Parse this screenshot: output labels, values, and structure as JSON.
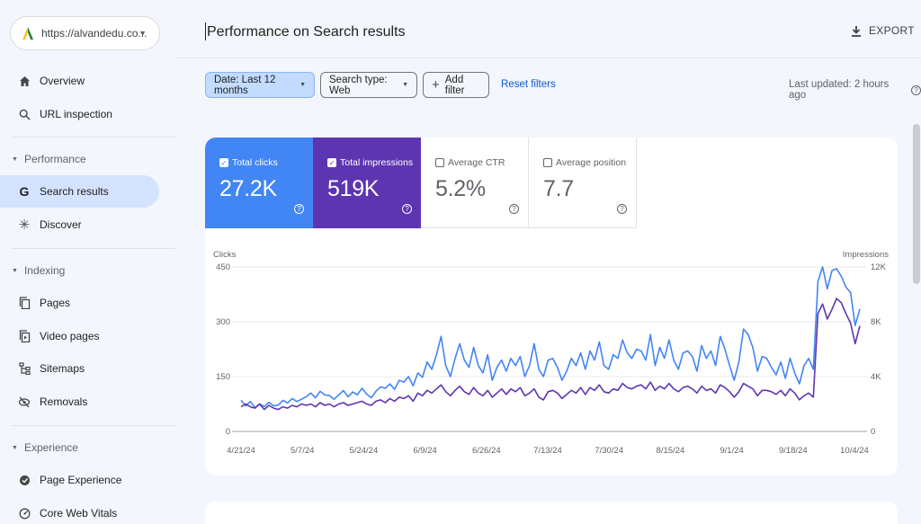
{
  "property": {
    "url": "https://alvandedu.co...",
    "logo_icon": "alvand-logo-icon"
  },
  "nav": {
    "overview": "Overview",
    "url_inspection": "URL inspection",
    "performance_section": "Performance",
    "search_results": "Search results",
    "discover": "Discover",
    "indexing_section": "Indexing",
    "pages": "Pages",
    "video_pages": "Video pages",
    "sitemaps": "Sitemaps",
    "removals": "Removals",
    "experience_section": "Experience",
    "page_experience": "Page Experience",
    "core_web_vitals": "Core Web Vitals"
  },
  "header": {
    "title": "Performance on Search results",
    "export_label": "EXPORT"
  },
  "filters": {
    "date": "Date: Last 12 months",
    "search_type": "Search type: Web",
    "add_filter": "Add filter",
    "reset": "Reset filters",
    "last_updated": "Last updated: 2 hours ago"
  },
  "metrics": [
    {
      "label": "Total clicks",
      "value": "27.2K",
      "checked": true,
      "color": "#4285f4"
    },
    {
      "label": "Total impressions",
      "value": "519K",
      "checked": true,
      "color": "#5e35b1"
    },
    {
      "label": "Average CTR",
      "value": "5.2%",
      "checked": false
    },
    {
      "label": "Average position",
      "value": "7.7",
      "checked": false
    }
  ],
  "chart_data": {
    "type": "line",
    "left_axis_label": "Clicks",
    "right_axis_label": "Impressions",
    "left_ticks": [
      "450",
      "300",
      "150",
      "0"
    ],
    "right_ticks": [
      "12K",
      "8K",
      "4K",
      "0"
    ],
    "ylim_left": [
      0,
      450
    ],
    "ylim_right": [
      0,
      12000
    ],
    "x_ticks": [
      "4/21/24",
      "5/7/24",
      "5/24/24",
      "6/9/24",
      "6/26/24",
      "7/13/24",
      "7/30/24",
      "8/15/24",
      "9/1/24",
      "9/18/24",
      "10/4/24"
    ],
    "grid": true,
    "series": [
      {
        "name": "Total clicks",
        "axis": "left",
        "color": "#4285f4",
        "values": [
          85,
          70,
          82,
          65,
          75,
          68,
          80,
          70,
          72,
          85,
          78,
          90,
          82,
          88,
          95,
          105,
          92,
          110,
          100,
          98,
          88,
          100,
          112,
          95,
          108,
          100,
          118,
          102,
          92,
          110,
          122,
          118,
          130,
          115,
          140,
          135,
          150,
          125,
          160,
          148,
          190,
          170,
          210,
          260,
          180,
          150,
          200,
          240,
          195,
          175,
          230,
          180,
          160,
          210,
          140,
          175,
          195,
          165,
          200,
          180,
          205,
          150,
          180,
          240,
          170,
          150,
          195,
          200,
          175,
          140,
          165,
          200,
          180,
          215,
          170,
          220,
          195,
          245,
          180,
          170,
          210,
          200,
          250,
          215,
          200,
          225,
          220,
          195,
          265,
          180,
          230,
          200,
          250,
          195,
          170,
          215,
          220,
          205,
          165,
          235,
          200,
          220,
          180,
          260,
          225,
          180,
          140,
          190,
          280,
          265,
          230,
          165,
          205,
          200,
          175,
          155,
          190,
          145,
          200,
          160,
          130,
          180,
          200,
          170,
          410,
          450,
          390,
          440,
          445,
          425,
          395,
          380,
          290,
          335
        ]
      },
      {
        "name": "Total impressions",
        "axis": "right",
        "color": "#5e35b1",
        "values": [
          1800,
          2000,
          1800,
          1700,
          2000,
          1600,
          1900,
          1700,
          1600,
          1800,
          1700,
          1900,
          1800,
          2000,
          1900,
          2000,
          1800,
          2100,
          1900,
          2000,
          1800,
          2000,
          2100,
          1900,
          2000,
          2100,
          2200,
          2000,
          1900,
          2200,
          2300,
          2100,
          2400,
          2200,
          2500,
          2400,
          2600,
          2200,
          2800,
          2600,
          3000,
          2800,
          3100,
          3400,
          2900,
          2600,
          3000,
          3300,
          2900,
          2700,
          3200,
          2800,
          2600,
          3000,
          2500,
          2800,
          3100,
          2700,
          3100,
          2900,
          3200,
          2600,
          2800,
          3100,
          2500,
          2300,
          2900,
          3000,
          2800,
          2400,
          2700,
          3000,
          2800,
          3200,
          2700,
          3200,
          3000,
          3400,
          2900,
          2800,
          3100,
          3000,
          3500,
          3200,
          3100,
          3300,
          3400,
          3100,
          3600,
          3000,
          3300,
          3100,
          3500,
          3100,
          2900,
          3200,
          3300,
          3100,
          2800,
          3300,
          3000,
          3100,
          2800,
          3400,
          3200,
          2900,
          2500,
          2900,
          3500,
          3300,
          3100,
          2600,
          3000,
          3000,
          2900,
          2700,
          3000,
          2600,
          3100,
          2800,
          2300,
          2600,
          2800,
          2500,
          8600,
          9300,
          8200,
          8900,
          9700,
          9400,
          8600,
          7900,
          6400,
          7700
        ]
      }
    ]
  }
}
